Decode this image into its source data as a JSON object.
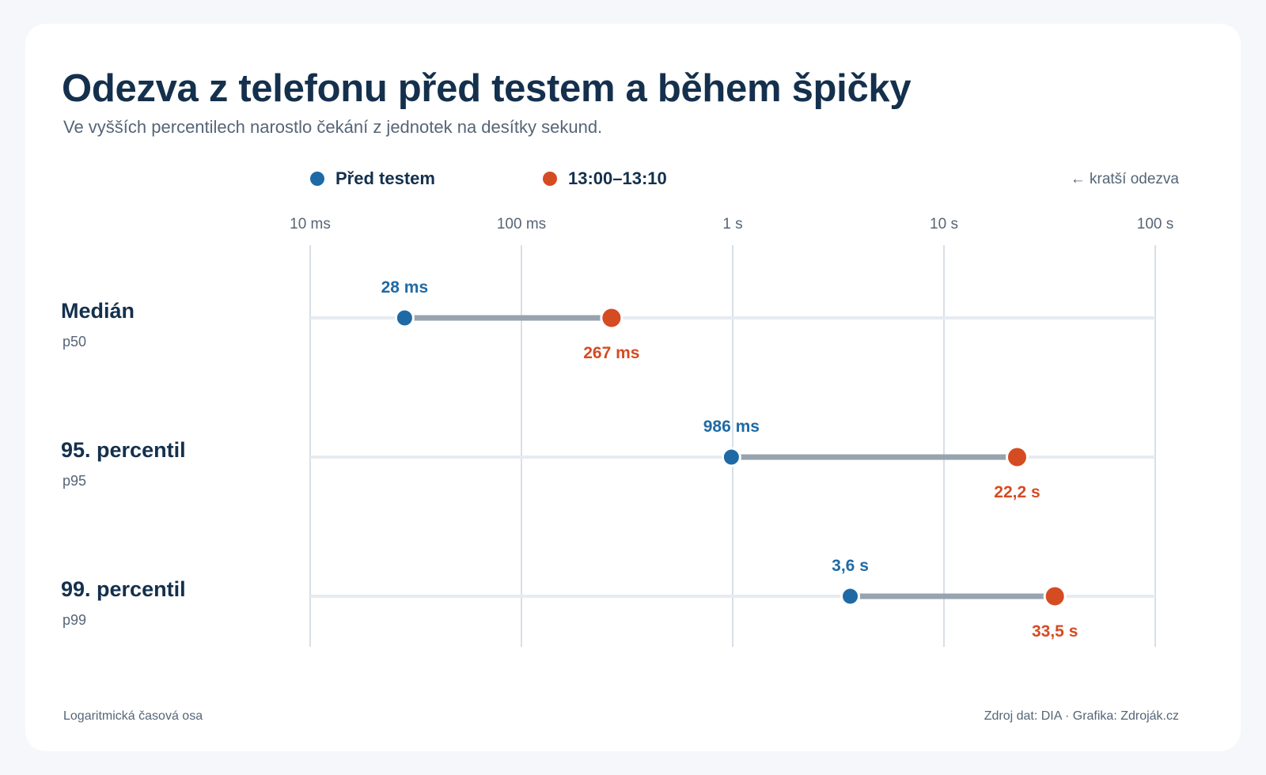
{
  "title": "Odezva z telefonu před testem a během špičky",
  "subtitle": "Ve vyšších percentilech narostlo čekání z jednotek na desítky sekund.",
  "legend": [
    {
      "label": "Před testem",
      "color": "#1f6aa5"
    },
    {
      "label": "13:00–13:10",
      "color": "#d54b22"
    }
  ],
  "direction_note": "← kratší odezva",
  "footer": {
    "left": "Logaritmická časová osa",
    "right": "Zdroj dat: DIA · Grafika: Zdroják.cz"
  },
  "colors": {
    "before": "#1f6aa5",
    "peak": "#d54b22",
    "connector": "#97a3ae",
    "grid": "#d8dfe7",
    "text_dark": "#14304d",
    "text_muted": "#566576"
  },
  "chart_data": {
    "type": "dumbbell",
    "scale": "log",
    "unit": "seconds",
    "xlim": [
      0.01,
      100
    ],
    "ticks": [
      {
        "value": 0.01,
        "label": "10 ms"
      },
      {
        "value": 0.1,
        "label": "100 ms"
      },
      {
        "value": 1,
        "label": "1 s"
      },
      {
        "value": 10,
        "label": "10 s"
      },
      {
        "value": 100,
        "label": "100 s"
      }
    ],
    "series": [
      {
        "name": "Před testem",
        "color": "#1f6aa5"
      },
      {
        "name": "13:00–13:10",
        "color": "#d54b22"
      }
    ],
    "rows": [
      {
        "label": "Medián",
        "sublabel": "p50",
        "values": [
          0.028,
          0.267
        ],
        "value_labels": [
          "28 ms",
          "267 ms"
        ]
      },
      {
        "label": "95. percentil",
        "sublabel": "p95",
        "values": [
          0.986,
          22.2
        ],
        "value_labels": [
          "986 ms",
          "22,2 s"
        ]
      },
      {
        "label": "99. percentil",
        "sublabel": "p99",
        "values": [
          3.6,
          33.5
        ],
        "value_labels": [
          "3,6 s",
          "33,5 s"
        ]
      }
    ],
    "grid": true
  }
}
